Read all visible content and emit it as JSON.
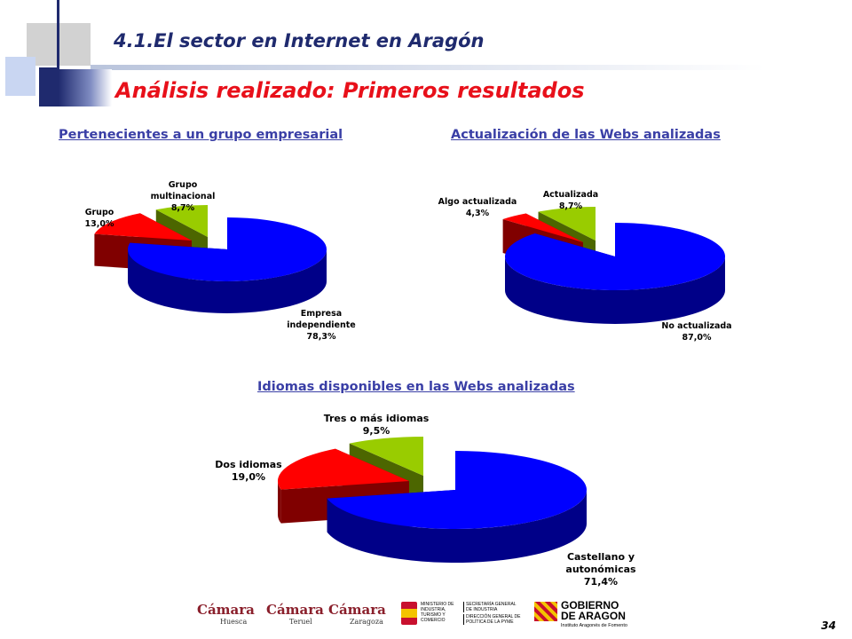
{
  "header": {
    "section_title": "4.1.El sector en Internet en Aragón",
    "main_title": "Análisis realizado: Primeros resultados"
  },
  "colors": {
    "blue": "#0000ff",
    "red": "#ff0000",
    "green": "#99cc00",
    "title_blue": "#3a3fa6",
    "title_red": "#e8101a"
  },
  "chart_data": [
    {
      "type": "pie",
      "title": "Pertenecientes a un grupo empresarial",
      "categories": [
        "Empresa independiente",
        "Grupo",
        "Grupo multinacional"
      ],
      "values": [
        78.3,
        13.0,
        8.7
      ],
      "labels": [
        "78,3%",
        "13,0%",
        "8,7%"
      ],
      "legend": "none"
    },
    {
      "type": "pie",
      "title": "Actualización de las Webs analizadas",
      "categories": [
        "No actualizada",
        "Algo actualizada",
        "Actualizada"
      ],
      "values": [
        87.0,
        4.3,
        8.7
      ],
      "labels": [
        "87,0%",
        "4,3%",
        "8,7%"
      ],
      "legend": "none"
    },
    {
      "type": "pie",
      "title": "Idiomas disponibles en las Webs analizadas",
      "categories": [
        "Castellano y autonómicas",
        "Dos idiomas",
        "Tres o más idiomas"
      ],
      "values": [
        71.4,
        19.0,
        9.5
      ],
      "labels": [
        "71,4%",
        "19,0%",
        "9,5%"
      ],
      "legend": "none"
    }
  ],
  "chart_labels": {
    "c1": {
      "main_line1": "Empresa",
      "main_line2": "independiente",
      "main_pct": "78,3%",
      "second_line1": "Grupo",
      "second_pct": "13,0%",
      "third_line1": "Grupo",
      "third_line2": "multinacional",
      "third_pct": "8,7%"
    },
    "c2": {
      "main_line1": "No actualizada",
      "main_pct": "87,0%",
      "second_line1": "Algo actualizada",
      "second_pct": "4,3%",
      "third_line1": "Actualizada",
      "third_pct": "8,7%"
    },
    "c3": {
      "main_line1": "Castellano y",
      "main_line2": "autonómicas",
      "main_pct": "71,4%",
      "second_line1": "Dos idiomas",
      "second_pct": "19,0%",
      "third_line1": "Tres o más idiomas",
      "third_pct": "9,5%"
    }
  },
  "footer": {
    "logos": [
      "Cámara Huesca",
      "Cámara Teruel",
      "Cámara Zaragoza",
      "Ministerio de Industria, Turismo y Comercio",
      "Gobierno de Aragón"
    ],
    "camara": "Cámara",
    "huesca": "Huesca",
    "teruel": "Teruel",
    "zaragoza": "Zaragoza",
    "ministerio": "MINISTERIO DE INDUSTRIA, TURISMO Y COMERCIO",
    "secretaria": "SECRETARÍA GENERAL DE INDUSTRIA",
    "direccion": "DIRECCIÓN GENERAL DE POLÍTICA DE LA PYME",
    "gobierno1": "GOBIERNO",
    "gobierno2": "DE ARAGON",
    "instituto": "Instituto Aragonés de Fomento"
  },
  "page_number": "34"
}
